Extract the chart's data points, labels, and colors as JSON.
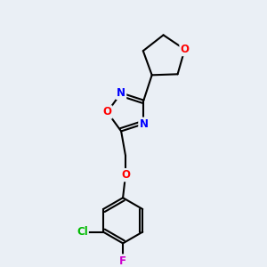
{
  "background_color": "#eaeff5",
  "bond_color": "#000000",
  "bond_width": 1.5,
  "atom_colors": {
    "O": "#ff0000",
    "N": "#0000ff",
    "Cl": "#00bb00",
    "F": "#cc00cc",
    "C": "#000000"
  },
  "font_size_atoms": 8.5,
  "fig_size": [
    3.0,
    3.0
  ],
  "dpi": 100
}
